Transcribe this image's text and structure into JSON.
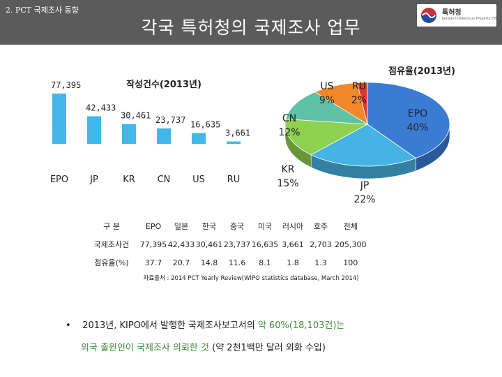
{
  "header": {
    "section_label": "2. PCT 국제조사 동향",
    "title": "각국 특허청의 국제조사 업무",
    "logo_name": "특허청",
    "logo_subtitle": "Korean Intellectual Property Office"
  },
  "chart_data": [
    {
      "type": "bar",
      "title": "작성건수(2013년)",
      "categories": [
        "EPO",
        "JP",
        "KR",
        "CN",
        "US",
        "RU"
      ],
      "values": [
        77395,
        42433,
        30461,
        23737,
        16635,
        3661
      ],
      "value_labels": [
        "77,395",
        "42,433",
        "30,461",
        "23,737",
        "16,635",
        "3,661"
      ],
      "color": "#41b8e8"
    },
    {
      "type": "pie",
      "title": "점유율(2013년)",
      "slices": [
        {
          "name": "EPO",
          "value": 40,
          "color": "#3a7bd4"
        },
        {
          "name": "JP",
          "value": 22,
          "color": "#45b3e3"
        },
        {
          "name": "KR",
          "value": 15,
          "color": "#8fd14f"
        },
        {
          "name": "CN",
          "value": 12,
          "color": "#5fc1a6"
        },
        {
          "name": "US",
          "value": 9,
          "color": "#f0882a"
        },
        {
          "name": "RU",
          "value": 2,
          "color": "#d93b2e"
        }
      ],
      "labels": {
        "EPO": {
          "name": "EPO",
          "pct": "40%"
        },
        "JP": {
          "name": "JP",
          "pct": "22%"
        },
        "KR": {
          "name": "KR",
          "pct": "15%"
        },
        "CN": {
          "name": "CN",
          "pct": "12%"
        },
        "US": {
          "name": "US",
          "pct": "9%"
        },
        "RU": {
          "name": "RU",
          "pct": "2%"
        }
      }
    }
  ],
  "table": {
    "header": [
      "구 분",
      "EPO",
      "일본",
      "한국",
      "중국",
      "미국",
      "러시아",
      "호주",
      "전체"
    ],
    "rows": [
      {
        "label": "국제조사건",
        "values": [
          "77,395",
          "42,433",
          "30,461",
          "23,737",
          "16,635",
          "3,661",
          "2,703",
          "205,300"
        ]
      },
      {
        "label": "점유율(%)",
        "values": [
          "37.7",
          "20.7",
          "14.8",
          "11.6",
          "8.1",
          "1.8",
          "1.3",
          "100"
        ]
      }
    ]
  },
  "source": "자료출처 : 2014 PCT Yearly Review(WIPO statistics database, March 2014)",
  "note": {
    "bullet": "•",
    "line1_prefix": "2013년, KIPO에서 발행한 국제조사보고서의 ",
    "line1_highlight": "약 60%(18,103건)는",
    "line2_highlight": "외국 출원인이 국제조사 의뢰한 것",
    "line2_suffix": " (약 2천1백만 달러 외화 수입)"
  },
  "colors": {
    "header_bg": "#5b5b5b",
    "highlight": "#3e8c3a"
  }
}
